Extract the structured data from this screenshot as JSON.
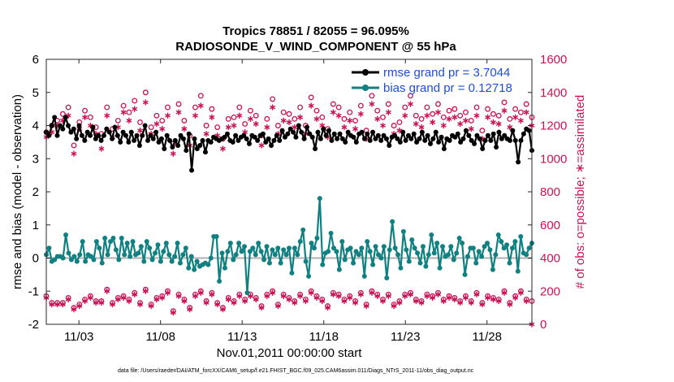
{
  "chart_data": {
    "type": "line",
    "title_line1": "Tropics 78851 / 82055 = 96.095%",
    "title_line2": "RADIOSONDE_V_WIND_COMPONENT @ 55 hPa",
    "xlabel": "Nov.01,2011 00:00:00 start",
    "ylabel_left": "rmse and bias (model - observation)",
    "ylabel_right": "# of obs: o=possible; ∗=assimilated",
    "footer": "data file: /Users/raeder/DAI/ATM_forcXX/CAM6_setup/f.e21.FHIST_BGC.f09_025.CAM6assim.011/Diags_NTrS_2011-11/obs_diag_output.nc",
    "xlim": [
      1.0,
      30.75
    ],
    "ylim_left": [
      -2,
      6
    ],
    "ylim_right": [
      0,
      1600
    ],
    "x_ticks": [
      3,
      8,
      13,
      18,
      23,
      28
    ],
    "x_tick_labels": [
      "11/03",
      "11/08",
      "11/13",
      "11/18",
      "11/23",
      "11/28"
    ],
    "y_ticks_left": [
      "-2",
      "-1",
      "0",
      "1",
      "2",
      "3",
      "4",
      "5",
      "6"
    ],
    "y_ticks_right": [
      "0",
      "200",
      "400",
      "600",
      "800",
      "1000",
      "1200",
      "1400",
      "1600"
    ],
    "colors": {
      "rmse": "#000000",
      "bias": "#108080",
      "obs": "#cc1155",
      "legend_text": "#1d4ed8",
      "zero_line": "#b0b0b0"
    },
    "series": [
      {
        "name": "rmse grand pr = 3.7044",
        "axis": "left",
        "marker": "circle",
        "values": [
          3.8,
          3.7,
          4.0,
          4.25,
          3.7,
          4.0,
          3.9,
          4.25,
          4.0,
          3.8,
          3.9,
          3.6,
          4.0,
          3.7,
          3.55,
          3.8,
          3.7,
          3.95,
          3.6,
          3.7,
          3.55,
          3.7,
          3.9,
          3.8,
          3.6,
          3.95,
          3.7,
          3.5,
          3.8,
          3.7,
          3.5,
          3.8,
          3.55,
          3.7,
          3.4,
          3.7,
          4.0,
          3.55,
          3.7,
          3.6,
          3.8,
          3.5,
          3.6,
          3.3,
          3.7,
          3.55,
          3.35,
          3.55,
          3.4,
          3.7,
          3.6,
          3.25,
          3.75,
          2.65,
          3.6,
          3.3,
          3.4,
          3.55,
          3.2,
          3.55,
          3.5,
          3.65,
          3.6,
          3.55,
          3.6,
          3.65,
          3.75,
          3.55,
          3.5,
          3.7,
          3.55,
          3.65,
          3.7,
          3.6,
          3.45,
          3.7,
          3.65,
          3.55,
          3.7,
          3.75,
          3.5,
          3.6,
          3.4,
          3.55,
          3.7,
          3.55,
          3.85,
          3.65,
          3.75,
          3.9,
          3.8,
          3.65,
          4.0,
          3.8,
          3.6,
          3.95,
          3.75,
          3.65,
          3.3,
          3.8,
          3.6,
          3.9,
          3.7,
          3.85,
          3.55,
          3.75,
          3.6,
          3.75,
          3.6,
          3.5,
          3.8,
          3.7,
          3.65,
          3.5,
          3.75,
          3.8,
          3.6,
          3.75,
          3.55,
          3.8,
          3.6,
          3.7,
          3.55,
          3.7,
          3.6,
          3.4,
          3.65,
          3.7,
          3.6,
          3.5,
          3.8,
          3.55,
          3.7,
          3.6,
          3.75,
          3.5,
          3.6,
          3.8,
          3.55,
          3.7,
          3.45,
          3.6,
          3.8,
          3.5,
          3.65,
          3.3,
          3.6,
          3.55,
          3.7,
          3.65,
          3.75,
          3.5,
          3.6,
          3.85,
          3.7,
          3.55,
          3.45,
          3.7,
          3.6,
          3.3,
          3.55,
          3.7,
          3.55,
          3.75,
          3.35,
          3.8,
          3.6,
          3.7,
          3.6,
          3.55,
          3.85,
          3.55,
          2.9,
          3.55,
          3.75,
          3.9,
          3.85,
          3.25
        ]
      },
      {
        "name": "bias grand pr = 0.12718",
        "axis": "left",
        "marker": "circle",
        "values": [
          0.1,
          0.3,
          -0.1,
          -0.05,
          0.05,
          0.05,
          0.0,
          0.7,
          0.15,
          -0.05,
          0.05,
          -0.1,
          0.1,
          0.5,
          -0.1,
          0.1,
          0.05,
          -0.05,
          0.5,
          0.3,
          -0.15,
          0.6,
          0.1,
          0.5,
          0.6,
          0.25,
          -0.05,
          0.6,
          0.1,
          0.45,
          0.05,
          0.5,
          0.1,
          0.15,
          0.35,
          -0.1,
          0.5,
          0.3,
          -0.05,
          0.15,
          0.4,
          -0.1,
          0.2,
          0.45,
          0.1,
          -0.1,
          0.05,
          0.45,
          -0.15,
          0.1,
          0.3,
          -0.3,
          0.05,
          -0.35,
          -0.1,
          -0.25,
          -0.2,
          -0.15,
          -0.2,
          0.0,
          0.65,
          0.65,
          -0.7,
          0.15,
          -0.3,
          0.2,
          0.45,
          -0.05,
          0.1,
          0.45,
          0.2,
          0.35,
          -1.05,
          0.2,
          0.3,
          0.1,
          0.45,
          0.2,
          -0.05,
          0.35,
          -0.15,
          0.25,
          0.1,
          0.3,
          -0.15,
          0.25,
          0.1,
          0.3,
          -0.45,
          0.3,
          0.1,
          0.5,
          0.85,
          -0.1,
          -0.55,
          0.45,
          0.3,
          0.6,
          1.8,
          -0.2,
          0.15,
          0.2,
          0.75,
          0.3,
          0.2,
          -0.35,
          0.5,
          -0.05,
          0.25,
          0.3,
          -0.15,
          0.2,
          0.1,
          0.3,
          -0.55,
          0.5,
          0.2,
          -0.2,
          0.35,
          0.1,
          0.0,
          0.35,
          -0.6,
          0.25,
          1.1,
          0.3,
          0.1,
          -0.3,
          0.8,
          0.25,
          -0.1,
          0.55,
          0.3,
          0.15,
          -0.15,
          0.35,
          -0.25,
          0.1,
          0.7,
          0.15,
          0.45,
          -0.3,
          0.35,
          0.05,
          0.1,
          0.35,
          -0.05,
          0.15,
          0.6,
          0.45,
          -0.5,
          0.05,
          0.3,
          0.3,
          -0.15,
          0.2,
          0.05,
          0.35,
          0.45,
          0.25,
          -0.35,
          0.1,
          0.7,
          0.5,
          0.3,
          0.4,
          -0.15,
          0.3,
          0.5,
          -0.4,
          0.65,
          0.15,
          0.1,
          0.3,
          0.45
        ]
      },
      {
        "name": "possible",
        "axis": "right",
        "marker": "o",
        "values": [
          1160,
          1200,
          1230,
          1270,
          1310,
          1080,
          1220,
          1290,
          1250,
          1190,
          1150,
          1310,
          1180,
          1230,
          1320,
          1280,
          1350,
          1220,
          1400,
          1190,
          1260,
          1230,
          1310,
          1090,
          1330,
          1230,
          1140,
          1310,
          1380,
          1200,
          1300,
          1190,
          1120,
          1240,
          1250,
          1310,
          1210,
          1290,
          1260,
          1140,
          1240,
          1360,
          1200,
          1280,
          1270,
          1240,
          1310,
          1200,
          1370,
          1290,
          1250,
          1180,
          1330,
          1310,
          1240,
          1280,
          1230,
          1320,
          1170,
          1380,
          1290,
          1250,
          1330,
          1200,
          1220,
          1310,
          1380,
          1260,
          1240,
          1310,
          1270,
          1330,
          1250,
          1290,
          1300,
          1260,
          1280,
          1230,
          1310,
          1170,
          1300,
          1270,
          1260,
          1340,
          1240,
          1300,
          1280,
          1330,
          1250
        ]
      },
      {
        "name": "assimilated",
        "axis": "right",
        "marker": "*",
        "values": [
          1130,
          1160,
          1200,
          1230,
          1260,
          1030,
          1180,
          1250,
          1200,
          1150,
          1060,
          1260,
          1130,
          1190,
          1280,
          1230,
          1300,
          1170,
          1340,
          1150,
          1210,
          1180,
          1260,
          1030,
          1280,
          1180,
          1080,
          1260,
          1320,
          1150,
          1250,
          1140,
          1060,
          1190,
          1200,
          1260,
          1160,
          1240,
          1210,
          1080,
          1190,
          1310,
          1150,
          1230,
          1220,
          1190,
          1250,
          1150,
          1320,
          1240,
          1200,
          1130,
          1280,
          1260,
          1190,
          1230,
          1180,
          1270,
          1120,
          1330,
          1240,
          1200,
          1280,
          1150,
          1170,
          1260,
          1330,
          1210,
          1190,
          1260,
          1220,
          1280,
          1200,
          1240,
          1250,
          1210,
          1230,
          1180,
          1260,
          1120,
          1250,
          1220,
          1210,
          1290,
          1190,
          1250,
          1230,
          1280,
          1200
        ]
      },
      {
        "name": "possible_low",
        "axis": "right",
        "marker": "o",
        "values": [
          170,
          130,
          130,
          130,
          160,
          100,
          120,
          150,
          170,
          140,
          140,
          210,
          130,
          160,
          170,
          150,
          190,
          130,
          210,
          120,
          160,
          170,
          200,
          80,
          180,
          150,
          100,
          180,
          200,
          140,
          190,
          130,
          100,
          160,
          140,
          180,
          150,
          180,
          160,
          110,
          180,
          200,
          120,
          180,
          160,
          140,
          180,
          150,
          200,
          170,
          150,
          110,
          190,
          180,
          150,
          170,
          140,
          190,
          120,
          200,
          180,
          150,
          180,
          120,
          140,
          180,
          190,
          150,
          140,
          180,
          170,
          190,
          150,
          170,
          160,
          140,
          170,
          140,
          190,
          130,
          170,
          160,
          150,
          200,
          130,
          170,
          200,
          150,
          140
        ]
      },
      {
        "name": "assimilated_low",
        "axis": "right",
        "marker": "*",
        "values": [
          160,
          120,
          120,
          120,
          150,
          90,
          110,
          140,
          160,
          130,
          130,
          200,
          120,
          150,
          160,
          140,
          180,
          120,
          200,
          110,
          150,
          160,
          190,
          70,
          170,
          140,
          90,
          170,
          190,
          130,
          180,
          120,
          90,
          150,
          130,
          170,
          140,
          170,
          150,
          100,
          170,
          190,
          110,
          170,
          150,
          130,
          170,
          140,
          190,
          160,
          140,
          100,
          180,
          170,
          140,
          160,
          130,
          180,
          110,
          190,
          170,
          140,
          170,
          110,
          130,
          170,
          180,
          140,
          130,
          170,
          160,
          180,
          140,
          160,
          150,
          130,
          160,
          130,
          180,
          120,
          160,
          150,
          140,
          190,
          120,
          160,
          190,
          140,
          0
        ]
      }
    ]
  }
}
